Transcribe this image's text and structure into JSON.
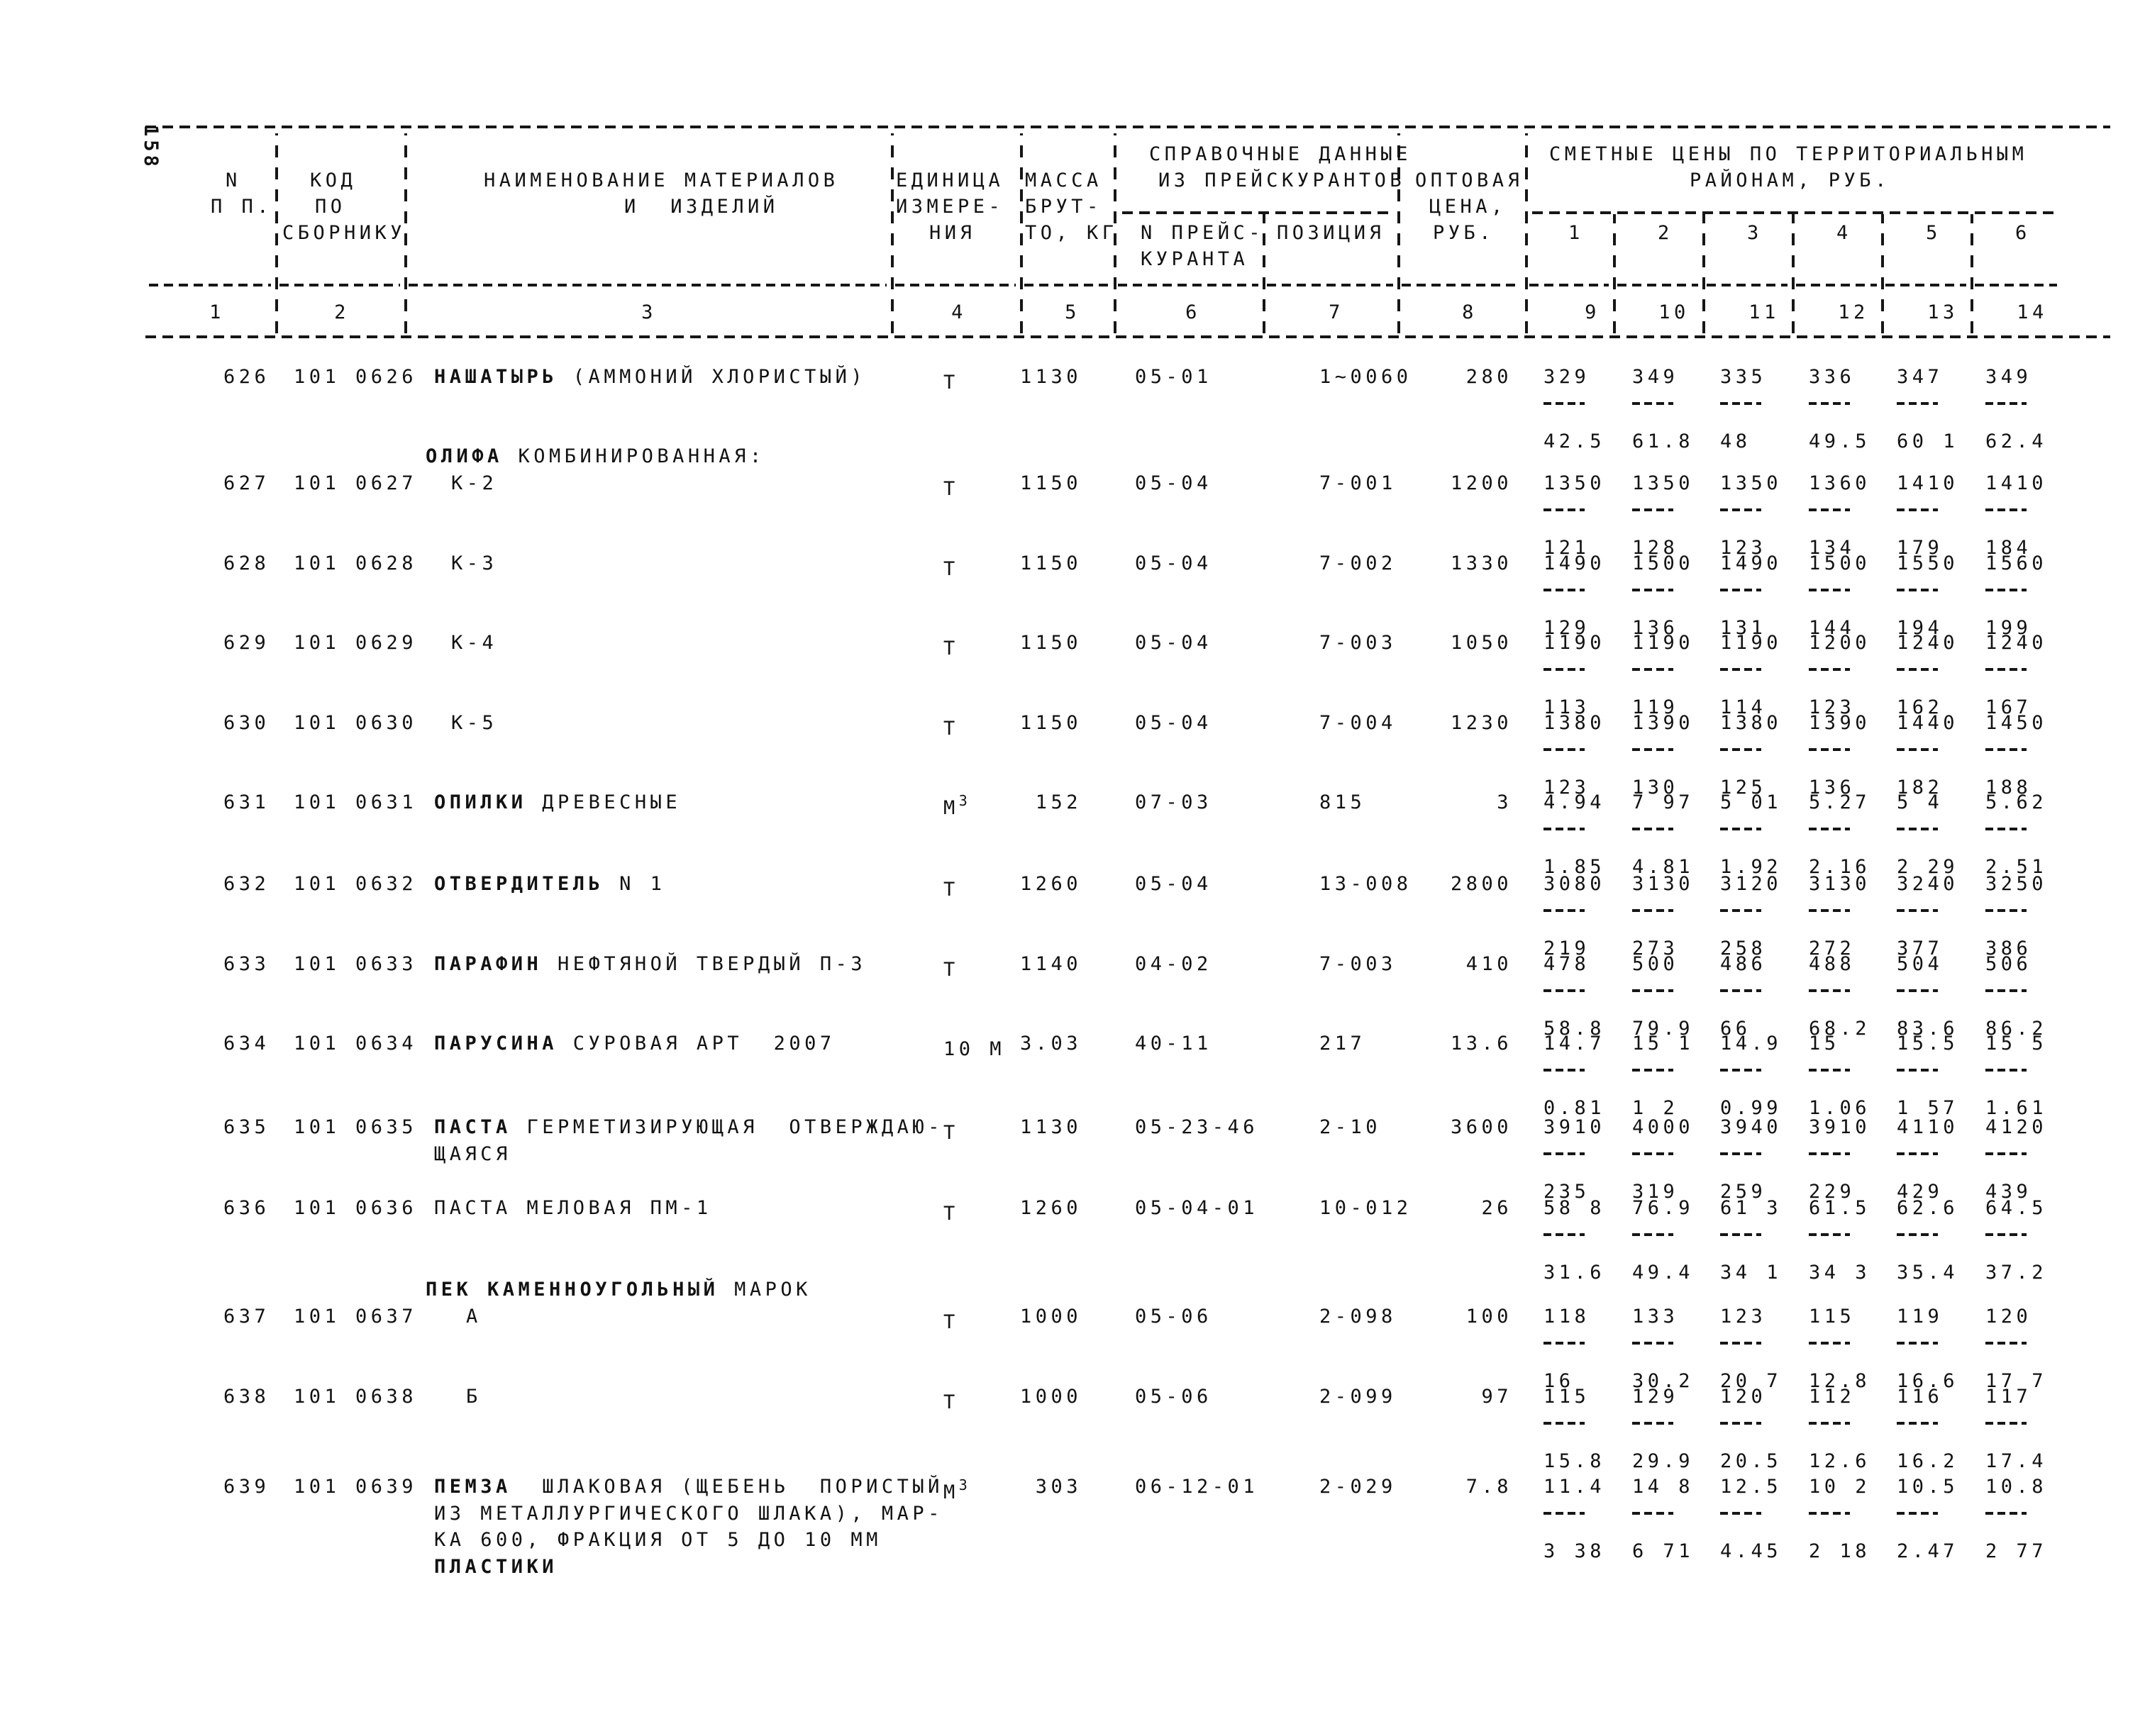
{
  "page_number": "158",
  "table": {
    "header": {
      "np1": "N",
      "np2": "П П.",
      "code1": "КОД",
      "code2": "ПО",
      "code3": "СБОРНИКУ",
      "name1": "НАИМЕНОВАНИЕ МАТЕРИАЛОВ",
      "name2": "И  ИЗДЕЛИЙ",
      "unit1": "ЕДИНИЦА",
      "unit2": "ИЗМЕРЕ-",
      "unit3": "НИЯ",
      "mass1": "МАССА",
      "mass2": "БРУТ-",
      "mass3": "ТО, КГ",
      "ref1": "СПРАВОЧНЫЕ ДАННЫЕ",
      "ref2": "ИЗ ПРЕЙСКУРАНТОВ",
      "ref_sub1a": "N ПРЕЙС-",
      "ref_sub1b": "КУРАНТА",
      "ref_sub2": "ПОЗИЦИЯ",
      "price1": "ОПТОВАЯ",
      "price2": "ЦЕНА,",
      "price3": "РУБ.",
      "regions1": "СМЕТНЫЕ ЦЕНЫ ПО ТЕРРИТОРИАЛЬНЫМ",
      "regions2": "РАЙОНАМ, РУБ.",
      "region_sub": [
        "1",
        "2",
        "3",
        "4",
        "5",
        "6"
      ],
      "col_numbers": [
        "1",
        "2",
        "3",
        "4",
        "5",
        "6",
        "7",
        "8",
        "9",
        "10",
        "11",
        "12",
        "13",
        "14"
      ]
    },
    "rows": [
      {
        "type": "item",
        "np": "626",
        "code": "101 0626",
        "name": [
          [
            {
              "t": "НАШАТЫРЬ",
              "b": 1
            },
            {
              "t": " (АММОНИЙ ХЛОРИСТЫЙ)",
              "b": 0
            }
          ]
        ],
        "indent": 0,
        "unit": "Т",
        "sup": "",
        "mass": "1130",
        "plist": "05-01",
        "pos": "1~0060",
        "whl": "280",
        "top": [
          "329",
          "349",
          "335",
          "336",
          "347",
          "349"
        ],
        "bot": [
          "42.5",
          "61.8",
          "48",
          "49.5",
          "60 1",
          "62.4"
        ]
      },
      {
        "type": "group",
        "seg": [
          {
            "t": "ОЛИФА",
            "b": 1
          },
          {
            "t": " КОМБИНИРОВАННАЯ:",
            "b": 0
          }
        ]
      },
      {
        "type": "item",
        "np": "627",
        "code": "101 0627",
        "name": [
          [
            {
              "t": "К-2",
              "b": 0
            }
          ]
        ],
        "indent": 1,
        "unit": "Т",
        "sup": "",
        "mass": "1150",
        "plist": "05-04",
        "pos": "7-001",
        "whl": "1200",
        "top": [
          "1350",
          "1350",
          "1350",
          "1360",
          "1410",
          "1410"
        ],
        "bot": [
          "121",
          "128",
          "123",
          "134",
          "179",
          "184"
        ]
      },
      {
        "type": "item",
        "np": "628",
        "code": "101 0628",
        "name": [
          [
            {
              "t": "К-3",
              "b": 0
            }
          ]
        ],
        "indent": 1,
        "unit": "Т",
        "sup": "",
        "mass": "1150",
        "plist": "05-04",
        "pos": "7-002",
        "whl": "1330",
        "top": [
          "1490",
          "1500",
          "1490",
          "1500",
          "1550",
          "1560"
        ],
        "bot": [
          "129",
          "136",
          "131",
          "144",
          "194",
          "199"
        ]
      },
      {
        "type": "item",
        "np": "629",
        "code": "101 0629",
        "name": [
          [
            {
              "t": "К-4",
              "b": 0
            }
          ]
        ],
        "indent": 1,
        "unit": "Т",
        "sup": "",
        "mass": "1150",
        "plist": "05-04",
        "pos": "7-003",
        "whl": "1050",
        "top": [
          "1190",
          "1190",
          "1190",
          "1200",
          "1240",
          "1240"
        ],
        "bot": [
          "113",
          "119",
          "114",
          "123",
          "162",
          "167"
        ]
      },
      {
        "type": "item",
        "np": "630",
        "code": "101 0630",
        "name": [
          [
            {
              "t": "К-5",
              "b": 0
            }
          ]
        ],
        "indent": 1,
        "unit": "Т",
        "sup": "",
        "mass": "1150",
        "plist": "05-04",
        "pos": "7-004",
        "whl": "1230",
        "top": [
          "1380",
          "1390",
          "1380",
          "1390",
          "1440",
          "1450"
        ],
        "bot": [
          "123",
          "130",
          "125",
          "136",
          "182",
          "188"
        ]
      },
      {
        "type": "item",
        "np": "631",
        "code": "101 0631",
        "name": [
          [
            {
              "t": "ОПИЛКИ",
              "b": 1
            },
            {
              "t": " ДРЕВЕСНЫЕ",
              "b": 0
            }
          ]
        ],
        "indent": 0,
        "unit": "М",
        "sup": "3",
        "mass": "152",
        "plist": "07-03",
        "pos": "815",
        "whl": "3",
        "top": [
          "4.94",
          "7 97",
          "5 01",
          "5.27",
          "5 4",
          "5.62"
        ],
        "bot": [
          "1.85",
          "4.81",
          "1.92",
          "2.16",
          "2 29",
          "2.51"
        ]
      },
      {
        "type": "item",
        "np": "632",
        "code": "101 0632",
        "name": [
          [
            {
              "t": "ОТВЕРДИТЕЛЬ",
              "b": 1
            },
            {
              "t": " N 1",
              "b": 0
            }
          ]
        ],
        "indent": 0,
        "unit": "Т",
        "sup": "",
        "mass": "1260",
        "plist": "05-04",
        "pos": "13-008",
        "whl": "2800",
        "top": [
          "3080",
          "3130",
          "3120",
          "3130",
          "3240",
          "3250"
        ],
        "bot": [
          "219",
          "273",
          "258",
          "272",
          "377",
          "386"
        ]
      },
      {
        "type": "item",
        "np": "633",
        "code": "101 0633",
        "name": [
          [
            {
              "t": "ПАРАФИН",
              "b": 1
            },
            {
              "t": " НЕФТЯНОЙ ТВЕРДЫЙ П-3",
              "b": 0
            }
          ]
        ],
        "indent": 0,
        "unit": "Т",
        "sup": "",
        "mass": "1140",
        "plist": "04-02",
        "pos": "7-003",
        "whl": "410",
        "top": [
          "478",
          "500",
          "486",
          "488",
          "504",
          "506"
        ],
        "bot": [
          "58.8",
          "79.9",
          "66",
          "68.2",
          "83.6",
          "86.2"
        ]
      },
      {
        "type": "item",
        "np": "634",
        "code": "101 0634",
        "name": [
          [
            {
              "t": "ПАРУСИНА",
              "b": 1
            },
            {
              "t": " СУРОВАЯ АРТ  2007",
              "b": 0
            }
          ]
        ],
        "indent": 0,
        "unit": "10 М",
        "sup": "",
        "mass": "3.03",
        "plist": "40-11",
        "pos": "217",
        "whl": "13.6",
        "top": [
          "14.7",
          "15 1",
          "14.9",
          "15",
          "15.5",
          "15 5"
        ],
        "bot": [
          "0.81",
          "1 2",
          "0.99",
          "1.06",
          "1 57",
          "1.61"
        ]
      },
      {
        "type": "item",
        "np": "635",
        "code": "101 0635",
        "name": [
          [
            {
              "t": "ПАСТА",
              "b": 1
            },
            {
              "t": " ГЕРМЕТИЗИРУЮЩАЯ  ОТВЕРЖДАЮ-",
              "b": 0
            }
          ],
          [
            {
              "t": "ЩАЯСЯ",
              "b": 0
            }
          ]
        ],
        "indent": 0,
        "unit": "Т",
        "sup": "",
        "mass": "1130",
        "plist": "05-23-46",
        "pos": "2-10",
        "whl": "3600",
        "top": [
          "3910",
          "4000",
          "3940",
          "3910",
          "4110",
          "4120"
        ],
        "bot": [
          "235",
          "319",
          "259",
          "229",
          "429",
          "439"
        ]
      },
      {
        "type": "item",
        "np": "636",
        "code": "101 0636",
        "name": [
          [
            {
              "t": "ПАСТА МЕЛОВАЯ ПМ-1",
              "b": 0
            }
          ]
        ],
        "indent": 0,
        "unit": "Т",
        "sup": "",
        "mass": "1260",
        "plist": "05-04-01",
        "pos": "10-012",
        "whl": "26",
        "top": [
          "58 8",
          "76.9",
          "61 3",
          "61.5",
          "62.6",
          "64.5"
        ],
        "bot": [
          "31.6",
          "49.4",
          "34 1",
          "34 3",
          "35.4",
          "37.2"
        ]
      },
      {
        "type": "group",
        "seg": [
          {
            "t": "ПЕК КАМЕННОУГОЛЬНЫЙ",
            "b": 1
          },
          {
            "t": " МАРОК",
            "b": 0
          }
        ]
      },
      {
        "type": "item",
        "np": "637",
        "code": "101 0637",
        "name": [
          [
            {
              "t": "А",
              "b": 0
            }
          ]
        ],
        "indent": 2,
        "unit": "Т",
        "sup": "",
        "mass": "1000",
        "plist": "05-06",
        "pos": "2-098",
        "whl": "100",
        "top": [
          "118",
          "133",
          "123",
          "115",
          "119",
          "120"
        ],
        "bot": [
          "16",
          "30.2",
          "20 7",
          "12.8",
          "16.6",
          "17 7"
        ]
      },
      {
        "type": "item",
        "np": "638",
        "code": "101 0638",
        "name": [
          [
            {
              "t": "Б",
              "b": 0
            }
          ]
        ],
        "indent": 2,
        "unit": "Т",
        "sup": "",
        "mass": "1000",
        "plist": "05-06",
        "pos": "2-099",
        "whl": "97",
        "top": [
          "115",
          "129",
          "120",
          "112",
          "116",
          "117"
        ],
        "bot": [
          "15.8",
          "29.9",
          "20.5",
          "12.6",
          "16.2",
          "17.4"
        ]
      },
      {
        "type": "item",
        "np": "639",
        "code": "101 0639",
        "name": [
          [
            {
              "t": "ПЕМЗА",
              "b": 1
            },
            {
              "t": "  ШЛАКОВАЯ (ЩЕБЕНЬ  ПОРИСТЫЙ",
              "b": 0
            }
          ],
          [
            {
              "t": "ИЗ МЕТАЛЛУРГИЧЕСКОГО ШЛАКА), МАР-",
              "b": 0
            }
          ],
          [
            {
              "t": "КА 600, ФРАКЦИЯ ОТ 5 ДО 10 ММ",
              "b": 0
            }
          ],
          [
            {
              "t": "ПЛАСТИКИ",
              "b": 1
            }
          ]
        ],
        "indent": 0,
        "unit": "М",
        "sup": "3",
        "mass": "303",
        "plist": "06-12-01",
        "pos": "2-029",
        "whl": "7.8",
        "top": [
          "11.4",
          "14 8",
          "12.5",
          "10 2",
          "10.5",
          "10.8"
        ],
        "bot": [
          "3 38",
          "6 71",
          "4.45",
          "2 18",
          "2.47",
          "2 77"
        ]
      }
    ]
  }
}
